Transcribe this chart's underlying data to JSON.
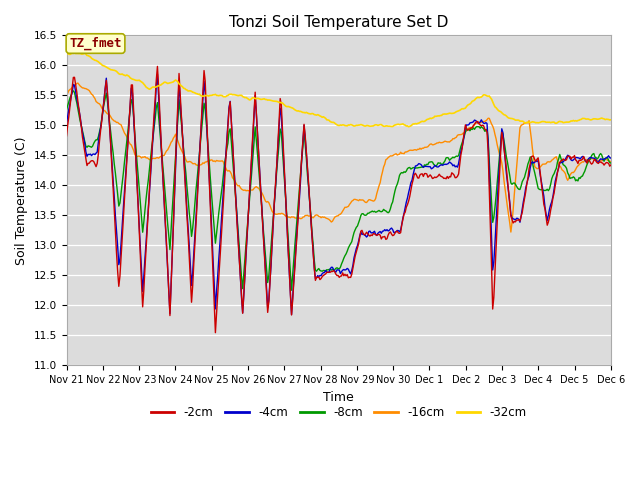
{
  "title": "Tonzi Soil Temperature Set D",
  "xlabel": "Time",
  "ylabel": "Soil Temperature (C)",
  "ylim": [
    11.0,
    16.5
  ],
  "annotation_text": "TZ_fmet",
  "annotation_color": "#8B0000",
  "annotation_bg": "#FFFFCC",
  "plot_bg": "#DCDCDC",
  "colors": {
    "-2cm": "#CC0000",
    "-4cm": "#0000CC",
    "-8cm": "#009900",
    "-16cm": "#FF8C00",
    "-32cm": "#FFD700"
  },
  "x_tick_labels": [
    "Nov 21",
    "Nov 22",
    "Nov 23",
    "Nov 24",
    "Nov 25",
    "Nov 26",
    "Nov 27",
    "Nov 28",
    "Nov 29",
    "Nov 30",
    "Dec 1",
    "Dec 2",
    "Dec 3",
    "Dec 4",
    "Dec 5",
    "Dec 6"
  ],
  "num_points": 480
}
